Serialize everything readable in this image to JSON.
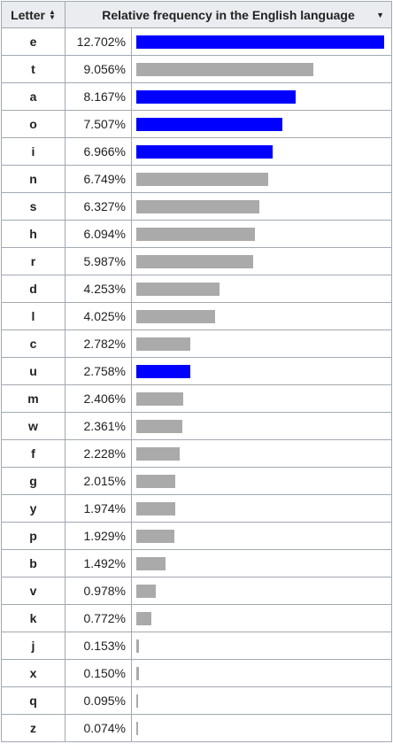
{
  "table": {
    "header": {
      "letter_label": "Letter",
      "letter_sort_icon": "sort-both-icon",
      "freq_label": "Relative frequency in the English language",
      "freq_sort_icon": "sort-descending-icon"
    },
    "colors": {
      "vowel_bar": "#0000ff",
      "consonant_bar": "#aaaaaa"
    }
  },
  "chart_data": {
    "type": "bar",
    "orientation": "horizontal",
    "categories": [
      "e",
      "t",
      "a",
      "o",
      "i",
      "n",
      "s",
      "h",
      "r",
      "d",
      "l",
      "c",
      "u",
      "m",
      "w",
      "f",
      "g",
      "y",
      "p",
      "b",
      "v",
      "k",
      "j",
      "x",
      "q",
      "z"
    ],
    "values": [
      12.702,
      9.056,
      8.167,
      7.507,
      6.966,
      6.749,
      6.327,
      6.094,
      5.987,
      4.253,
      4.025,
      2.782,
      2.758,
      2.406,
      2.361,
      2.228,
      2.015,
      1.974,
      1.929,
      1.492,
      0.978,
      0.772,
      0.153,
      0.15,
      0.095,
      0.074
    ],
    "labels": [
      "12.702%",
      "9.056%",
      "8.167%",
      "7.507%",
      "6.966%",
      "6.749%",
      "6.327%",
      "6.094%",
      "5.987%",
      "4.253%",
      "4.025%",
      "2.782%",
      "2.758%",
      "2.406%",
      "2.361%",
      "2.228%",
      "2.015%",
      "1.974%",
      "1.929%",
      "1.492%",
      "0.978%",
      "0.772%",
      "0.153%",
      "0.150%",
      "0.095%",
      "0.074%"
    ],
    "vowels": [
      "a",
      "e",
      "i",
      "o",
      "u"
    ],
    "xlim": [
      0,
      12.702
    ]
  }
}
